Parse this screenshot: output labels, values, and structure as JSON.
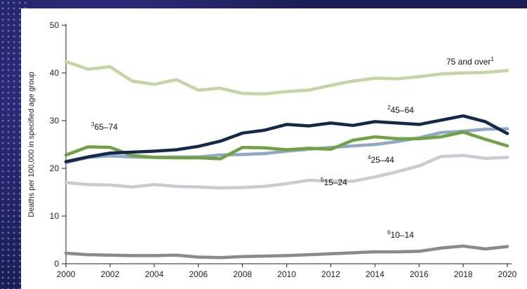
{
  "chart_data": {
    "type": "line",
    "title": "",
    "xlabel": "",
    "ylabel": "Deaths per 100,000 in specified age group",
    "xlim": [
      2000,
      2020
    ],
    "ylim": [
      0,
      50
    ],
    "x_ticks": [
      "2000",
      "2002",
      "2004",
      "2006",
      "2008",
      "2010",
      "2012",
      "2014",
      "2016",
      "2018",
      "2020"
    ],
    "y_ticks": [
      "0",
      "10",
      "20",
      "30",
      "40",
      "50"
    ],
    "x": [
      2000,
      2001,
      2002,
      2003,
      2004,
      2005,
      2006,
      2007,
      2008,
      2009,
      2010,
      2011,
      2012,
      2013,
      2014,
      2015,
      2016,
      2017,
      2018,
      2019,
      2020
    ],
    "grid": false,
    "series": [
      {
        "name": "75 and over",
        "label_text": "75 and over",
        "label_sup": "1",
        "sup_first": false,
        "color": "#c2d6a3",
        "values": [
          42.4,
          40.8,
          41.3,
          38.3,
          37.6,
          38.6,
          36.4,
          36.8,
          35.7,
          35.6,
          36.1,
          36.4,
          37.4,
          38.3,
          38.9,
          38.8,
          39.2,
          39.8,
          40.0,
          40.1,
          40.5
        ]
      },
      {
        "name": "45–64",
        "label_text": "45–64",
        "label_sup": "2",
        "sup_first": true,
        "color": "#13294b",
        "values": [
          21.4,
          22.4,
          23.2,
          23.4,
          23.6,
          23.9,
          24.6,
          25.7,
          27.4,
          28.0,
          29.2,
          28.9,
          29.5,
          29.0,
          29.8,
          29.5,
          29.2,
          30.1,
          31.0,
          29.8,
          27.3
        ]
      },
      {
        "name": "65–74",
        "label_text": "65–74",
        "label_sup": "3",
        "sup_first": true,
        "color": "#6fa33f",
        "values": [
          22.8,
          24.5,
          24.4,
          22.7,
          22.3,
          22.2,
          22.2,
          22.0,
          24.4,
          24.3,
          23.9,
          24.2,
          24.0,
          25.9,
          26.6,
          26.2,
          26.2,
          26.6,
          27.6,
          26.1,
          24.7
        ]
      },
      {
        "name": "25–44",
        "label_text": "25–44",
        "label_sup": "4",
        "sup_first": true,
        "color": "#8fa8c9",
        "values": [
          21.2,
          22.3,
          22.6,
          22.4,
          22.3,
          22.4,
          22.4,
          22.8,
          22.9,
          23.1,
          23.6,
          24.0,
          24.4,
          24.7,
          25.0,
          25.6,
          26.4,
          27.5,
          27.8,
          28.2,
          28.3
        ]
      },
      {
        "name": "15–24",
        "label_text": "15–24",
        "label_sup": "5",
        "sup_first": true,
        "color": "#c8ccd2",
        "values": [
          17.0,
          16.6,
          16.5,
          16.1,
          16.6,
          16.2,
          16.1,
          15.9,
          16.0,
          16.2,
          16.8,
          17.5,
          17.3,
          17.3,
          18.2,
          19.3,
          20.5,
          22.5,
          22.7,
          22.1,
          22.3
        ]
      },
      {
        "name": "10–14",
        "label_text": "10–14",
        "label_sup": "6",
        "sup_first": true,
        "color": "#8a8a8a",
        "values": [
          2.2,
          1.9,
          1.8,
          1.7,
          1.7,
          1.8,
          1.4,
          1.3,
          1.5,
          1.6,
          1.7,
          1.9,
          2.1,
          2.3,
          2.5,
          2.5,
          2.6,
          3.3,
          3.7,
          3.1,
          3.6
        ]
      }
    ]
  }
}
